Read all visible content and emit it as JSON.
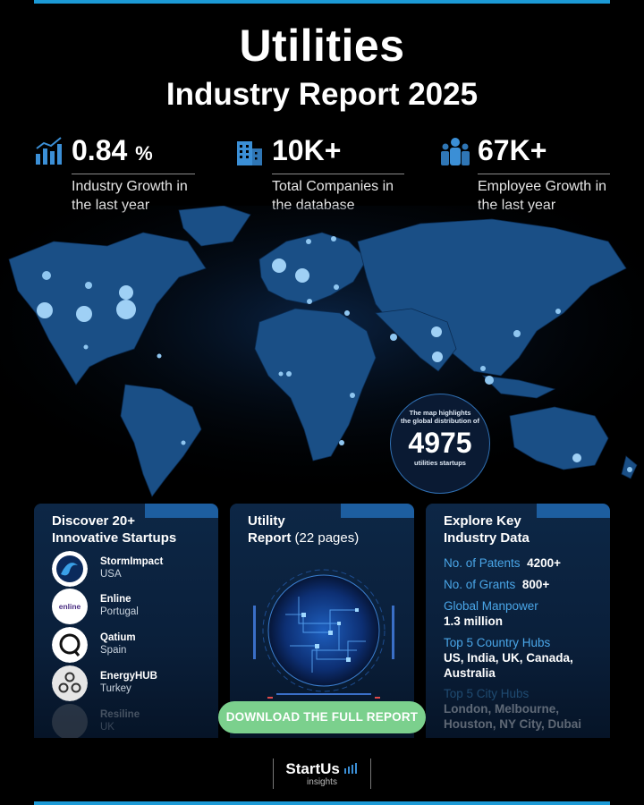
{
  "header": {
    "title_line1": "Utilities",
    "title_line2": "Industry Report 2025"
  },
  "stats": [
    {
      "icon": "bar-chart-icon",
      "value": "0.84",
      "unit": "%",
      "desc_line1": "Industry Growth in",
      "desc_line2": "the last year"
    },
    {
      "icon": "building-icon",
      "value": "10K+",
      "unit": "",
      "desc_line1": "Total Companies in",
      "desc_line2": "the database"
    },
    {
      "icon": "people-icon",
      "value": "67K+",
      "unit": "",
      "desc_line1": "Employee Growth in",
      "desc_line2": "the last year"
    }
  ],
  "map_badge": {
    "line1": "The map highlights",
    "line2": "the global distribution of",
    "count": "4975",
    "line3": "utilities startups"
  },
  "startups_card": {
    "title_line1": "Discover 20+",
    "title_line2": "Innovative Startups",
    "items": [
      {
        "name": "StormImpact",
        "country": "USA"
      },
      {
        "name": "Enline",
        "country": "Portugal",
        "logo_text": "enline"
      },
      {
        "name": "Qatium",
        "country": "Spain"
      },
      {
        "name": "EnergyHUB",
        "country": "Turkey"
      },
      {
        "name": "Resiline",
        "country": "UK"
      }
    ]
  },
  "report_card": {
    "title_line1": "Utility",
    "title_bold": "Report",
    "title_light": "(22 pages)",
    "download_label": "DOWNLOAD THE FULL REPORT"
  },
  "data_card": {
    "title_line1": "Explore Key",
    "title_line2": "Industry Data",
    "patents_label": "No. of Patents",
    "patents_value": "4200+",
    "grants_label": "No. of Grants",
    "grants_value": "800+",
    "manpower_label": "Global Manpower",
    "manpower_value": "1.3 million",
    "country_label": "Top 5 Country Hubs",
    "country_value_1": "US, India, UK, Canada,",
    "country_value_2": "Australia",
    "city_label": "Top 5 City Hubs",
    "city_value_1": "London, Melbourne,",
    "city_value_2": "Houston, NY City, Dubai"
  },
  "brand": {
    "name": "StartUs",
    "sub": "insights"
  },
  "colors": {
    "accent": "#1c9ad6",
    "map_land": "#1a4f86",
    "label_blue": "#4aa6e8",
    "button_green": "#7bd08d"
  }
}
